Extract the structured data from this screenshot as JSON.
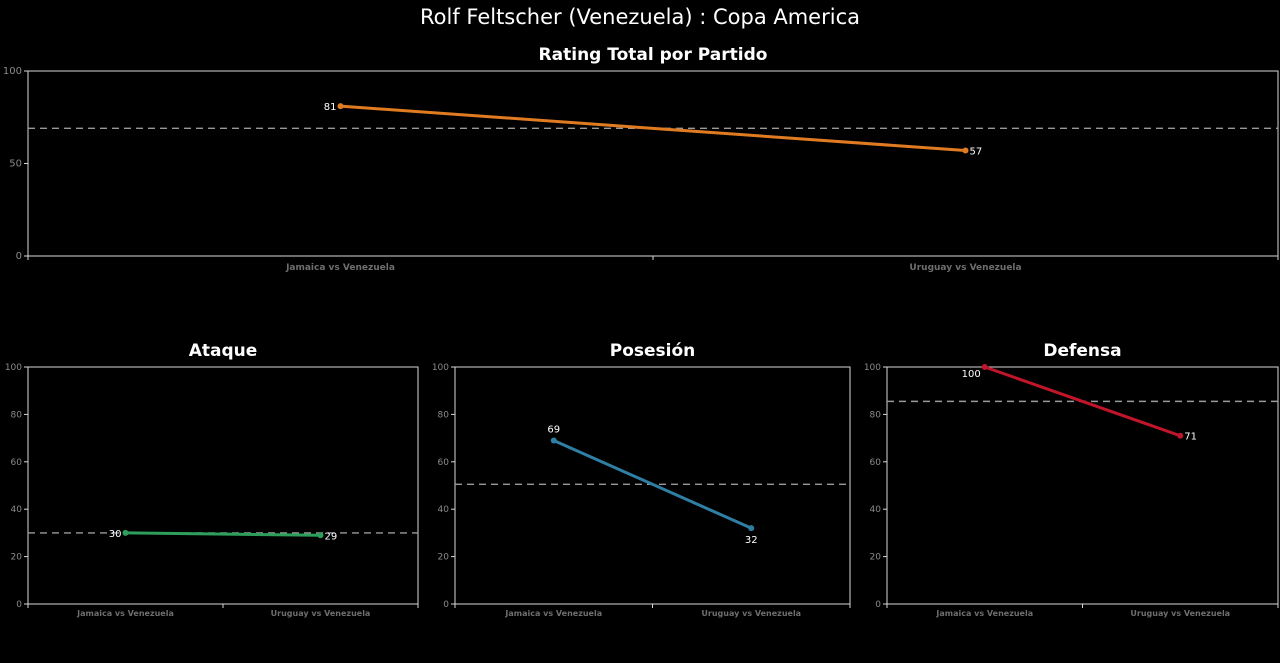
{
  "title": "Rolf Feltscher (Venezuela) :  Copa  America",
  "chart_data": [
    {
      "id": "total",
      "type": "line",
      "title": "Rating Total por Partido",
      "categories": [
        "Jamaica vs Venezuela",
        "Uruguay vs Venezuela"
      ],
      "values": [
        81,
        57
      ],
      "data_labels": [
        "81",
        "57"
      ],
      "color": "#e07b22",
      "reference_line": 69,
      "ylim": [
        0,
        100
      ],
      "yticks": [
        0,
        50,
        100
      ]
    },
    {
      "id": "ataque",
      "type": "line",
      "title": "Ataque",
      "categories": [
        "Jamaica vs Venezuela",
        "Uruguay vs Venezuela"
      ],
      "values": [
        30,
        29
      ],
      "data_labels": [
        "30",
        "29"
      ],
      "color": "#2e9e5b",
      "reference_line": 30,
      "ylim": [
        0,
        100
      ],
      "yticks": [
        0,
        20,
        40,
        60,
        80,
        100
      ]
    },
    {
      "id": "posesion",
      "type": "line",
      "title": "Posesión",
      "categories": [
        "Jamaica vs Venezuela",
        "Uruguay vs Venezuela"
      ],
      "values": [
        69,
        32
      ],
      "data_labels": [
        "69",
        "32"
      ],
      "color": "#2f7fa5",
      "reference_line": 50.5,
      "ylim": [
        0,
        100
      ],
      "yticks": [
        0,
        20,
        40,
        60,
        80,
        100
      ]
    },
    {
      "id": "defensa",
      "type": "line",
      "title": "Defensa",
      "categories": [
        "Jamaica vs Venezuela",
        "Uruguay vs Venezuela"
      ],
      "values": [
        100,
        71
      ],
      "data_labels": [
        "100",
        "71"
      ],
      "color": "#c0152a",
      "reference_line": 85.5,
      "ylim": [
        0,
        100
      ],
      "yticks": [
        0,
        20,
        40,
        60,
        80,
        100
      ]
    }
  ]
}
